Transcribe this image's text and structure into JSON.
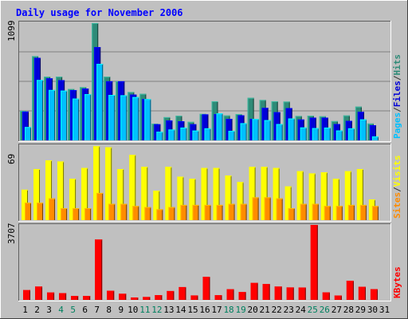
{
  "chart_data": [
    {
      "type": "bar",
      "title": "Daily usage for November 2006",
      "panel": "Pages / Files / Hits",
      "ylabel_parts": [
        {
          "text": "Pages",
          "color": "#00c0ff"
        },
        {
          "text": "/",
          "color": "#333333"
        },
        {
          "text": "Files",
          "color": "#0000d8"
        },
        {
          "text": "/",
          "color": "#333333"
        },
        {
          "text": "Hits",
          "color": "#2e8b78"
        }
      ],
      "ymax_label": "1099",
      "ylim": [
        0,
        1099
      ],
      "categories": [
        "1",
        "2",
        "3",
        "4",
        "5",
        "6",
        "7",
        "8",
        "9",
        "10",
        "11",
        "12",
        "13",
        "14",
        "15",
        "16",
        "17",
        "18",
        "19",
        "20",
        "21",
        "22",
        "23",
        "24",
        "25",
        "26",
        "27",
        "28",
        "29",
        "30",
        "31"
      ],
      "series": [
        {
          "name": "Hits",
          "color": "#2e8b78",
          "values": [
            275,
            784,
            593,
            593,
            479,
            495,
            1092,
            593,
            550,
            450,
            433,
            155,
            216,
            229,
            172,
            246,
            364,
            232,
            245,
            396,
            376,
            364,
            361,
            227,
            230,
            224,
            179,
            232,
            314,
            157,
            0
          ]
        },
        {
          "name": "Files",
          "color": "#0000d8",
          "values": [
            268,
            768,
            577,
            560,
            468,
            482,
            868,
            550,
            550,
            426,
            384,
            150,
            185,
            178,
            150,
            242,
            244,
            200,
            233,
            200,
            302,
            262,
            300,
            194,
            211,
            211,
            152,
            181,
            265,
            141,
            0
          ]
        },
        {
          "name": "Pages",
          "color": "#00c0ff",
          "values": [
            124,
            562,
            469,
            463,
            389,
            430,
            712,
            423,
            420,
            403,
            384,
            80,
            101,
            119,
            91,
            112,
            251,
            88,
            160,
            199,
            188,
            152,
            204,
            120,
            114,
            119,
            92,
            112,
            195,
            36,
            0
          ]
        }
      ]
    },
    {
      "type": "bar",
      "panel": "Visits / Sites",
      "ylabel_parts": [
        {
          "text": "Sites",
          "color": "#ff8c00"
        },
        {
          "text": "/",
          "color": "#333333"
        },
        {
          "text": "Visits",
          "color": "#ffff00"
        }
      ],
      "ymax_label": "69",
      "ylim": [
        0,
        69
      ],
      "categories": [
        "1",
        "2",
        "3",
        "4",
        "5",
        "6",
        "7",
        "8",
        "9",
        "10",
        "11",
        "12",
        "13",
        "14",
        "15",
        "16",
        "17",
        "18",
        "19",
        "20",
        "21",
        "22",
        "23",
        "24",
        "25",
        "26",
        "27",
        "28",
        "29",
        "30",
        "31"
      ],
      "series": [
        {
          "name": "Visits",
          "color": "#ffff00",
          "values": [
            28,
            47,
            55,
            54,
            38,
            48,
            68,
            67,
            47,
            60,
            49,
            27,
            49,
            40,
            38,
            48,
            48,
            41,
            35,
            49,
            49,
            48,
            31,
            45,
            43,
            44,
            38,
            45,
            47,
            19,
            0
          ]
        },
        {
          "name": "Sites",
          "color": "#ff8c00",
          "values": [
            16,
            16,
            20,
            11,
            11,
            11,
            25,
            15,
            15,
            13,
            12,
            10,
            12,
            14,
            14,
            14,
            14,
            15,
            15,
            21,
            21,
            20,
            11,
            15,
            15,
            13,
            13,
            14,
            14,
            13,
            0
          ]
        }
      ]
    },
    {
      "type": "bar",
      "panel": "KBytes",
      "ylabel_parts": [
        {
          "text": "KBytes",
          "color": "#ff0000"
        }
      ],
      "ymax_label": "3707",
      "ylim": [
        0,
        3707
      ],
      "categories": [
        "1",
        "2",
        "3",
        "4",
        "5",
        "6",
        "7",
        "8",
        "9",
        "10",
        "11",
        "12",
        "13",
        "14",
        "15",
        "16",
        "17",
        "18",
        "19",
        "20",
        "21",
        "22",
        "23",
        "24",
        "25",
        "26",
        "27",
        "28",
        "29",
        "30",
        "31"
      ],
      "series": [
        {
          "name": "KBytes",
          "color": "#ff0000",
          "values": [
            483,
            658,
            364,
            333,
            195,
            195,
            2984,
            451,
            302,
            119,
            143,
            234,
            437,
            633,
            219,
            1140,
            231,
            525,
            387,
            838,
            783,
            658,
            615,
            612,
            3707,
            369,
            215,
            945,
            644,
            529,
            0
          ]
        }
      ]
    }
  ],
  "x_labels": {
    "weekend_color": "#00805f",
    "weekday_color": "#000000",
    "weekend_days": [
      "4",
      "5",
      "11",
      "12",
      "18",
      "19",
      "25",
      "26"
    ]
  },
  "colors": {
    "background": "#c0c0c0",
    "title": "#0000ff",
    "gridline": "#808080"
  }
}
